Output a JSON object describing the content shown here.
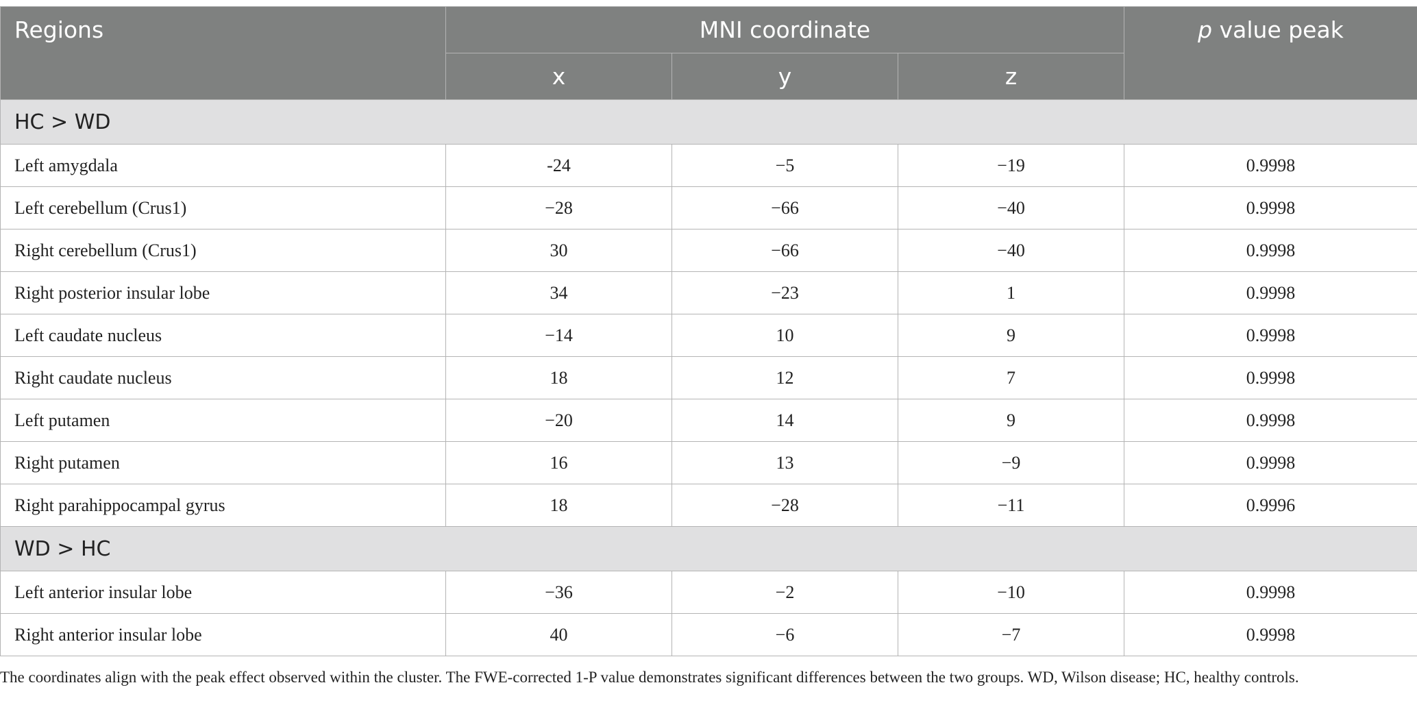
{
  "header": {
    "regions": "Regions",
    "mni": "MNI coordinate",
    "coords": [
      "x",
      "y",
      "z"
    ],
    "p_value": {
      "italic": "p",
      "rest": "value peak"
    }
  },
  "groups": [
    {
      "label": "HC > WD",
      "rows": [
        [
          "Left amygdala",
          "-24",
          "−5",
          "−19",
          "0.9998"
        ],
        [
          "Left cerebellum (Crus1)",
          "−28",
          "−66",
          "−40",
          "0.9998"
        ],
        [
          "Right cerebellum (Crus1)",
          "30",
          "−66",
          "−40",
          "0.9998"
        ],
        [
          "Right posterior insular lobe",
          "34",
          "−23",
          "1",
          "0.9998"
        ],
        [
          "Left caudate nucleus",
          "−14",
          "10",
          "9",
          "0.9998"
        ],
        [
          "Right caudate nucleus",
          "18",
          "12",
          "7",
          "0.9998"
        ],
        [
          "Left putamen",
          "−20",
          "14",
          "9",
          "0.9998"
        ],
        [
          "Right putamen",
          "16",
          "13",
          "−9",
          "0.9998"
        ],
        [
          "Right parahippocampal gyrus",
          "18",
          "−28",
          "−11",
          "0.9996"
        ]
      ]
    },
    {
      "label": "WD > HC",
      "rows": [
        [
          "Left anterior insular lobe",
          "−36",
          "−2",
          "−10",
          "0.9998"
        ],
        [
          "Right anterior insular lobe",
          "40",
          "−6",
          "−7",
          "0.9998"
        ]
      ]
    }
  ],
  "footnote": "The coordinates align with the peak effect observed within the cluster. The FWE-corrected 1-P value demonstrates significant differences between the two groups. WD, Wilson disease; HC, healthy controls."
}
